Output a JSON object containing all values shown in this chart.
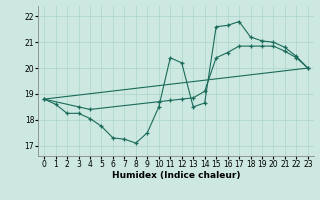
{
  "xlabel": "Humidex (Indice chaleur)",
  "bg_color": "#cce8e0",
  "line_color": "#1a6b5a",
  "grid_color": "#aad4cc",
  "xlim": [
    -0.5,
    23.5
  ],
  "ylim": [
    16.6,
    22.4
  ],
  "xticks": [
    0,
    1,
    2,
    3,
    4,
    5,
    6,
    7,
    8,
    9,
    10,
    11,
    12,
    13,
    14,
    15,
    16,
    17,
    18,
    19,
    20,
    21,
    22,
    23
  ],
  "yticks": [
    17,
    18,
    19,
    20,
    21,
    22
  ],
  "line1_x": [
    0,
    1,
    2,
    3,
    4,
    5,
    6,
    7,
    8,
    9,
    10,
    11,
    12,
    13,
    14,
    15,
    16,
    17,
    18,
    19,
    20,
    21,
    22,
    23
  ],
  "line1_y": [
    18.8,
    18.6,
    18.25,
    18.25,
    18.05,
    17.75,
    17.3,
    17.25,
    17.1,
    17.5,
    18.5,
    20.4,
    20.2,
    18.5,
    18.65,
    21.6,
    21.65,
    21.8,
    21.2,
    21.05,
    21.0,
    20.8,
    20.45,
    20.0
  ],
  "line2_x": [
    0,
    3,
    4,
    10,
    11,
    12,
    13,
    14,
    15,
    16,
    17,
    18,
    19,
    20,
    21,
    22,
    23
  ],
  "line2_y": [
    18.8,
    18.5,
    18.4,
    18.7,
    18.75,
    18.8,
    18.85,
    19.1,
    20.4,
    20.6,
    20.85,
    20.85,
    20.85,
    20.85,
    20.65,
    20.4,
    20.0
  ],
  "line3_x": [
    0,
    23
  ],
  "line3_y": [
    18.8,
    20.0
  ]
}
